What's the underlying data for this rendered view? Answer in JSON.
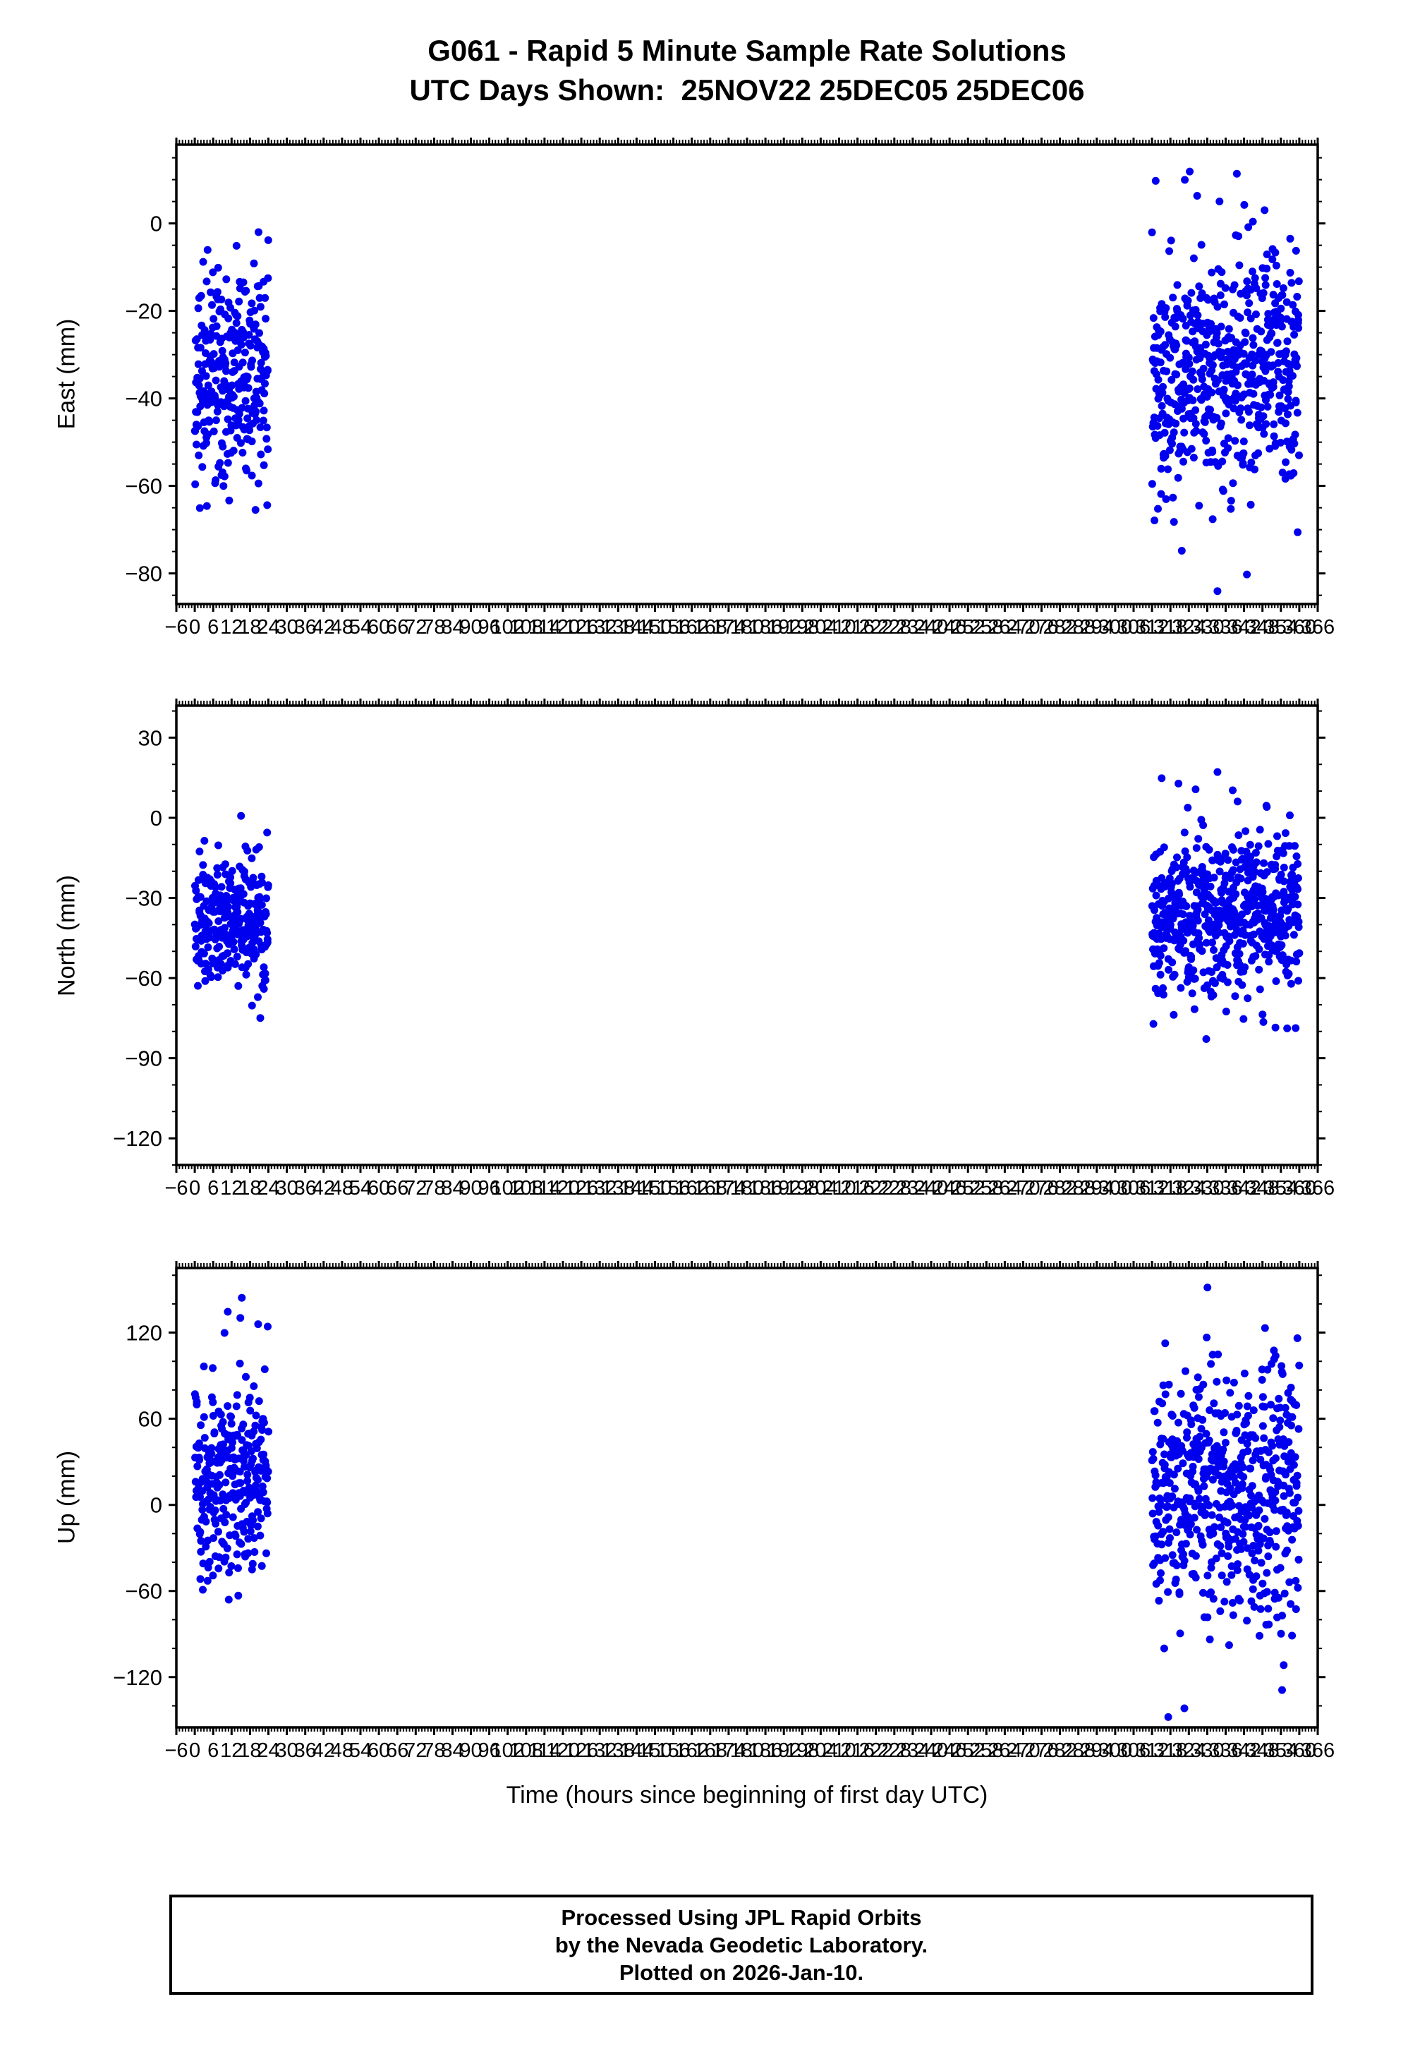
{
  "title": {
    "line1": "G061 - Rapid 5 Minute Sample Rate Solutions",
    "line2": "UTC Days Shown:  25NOV22 25DEC05 25DEC06"
  },
  "xaxis_title": "Time (hours since beginning of first day UTC)",
  "footer": {
    "line1": "Processed Using JPL Rapid Orbits",
    "line2": "by the Nevada Geodetic Laboratory.",
    "line3": "Plotted on 2026-Jan-10."
  },
  "colors": {
    "point": "#0000ee",
    "frame": "#000000"
  },
  "chart_data": [
    {
      "type": "scatter",
      "ylabel": "East (mm)",
      "xlabel": "Time (hours since beginning of first day UTC)",
      "xlim": [
        -6,
        366
      ],
      "ylim": [
        -87,
        18
      ],
      "yticks": [
        0,
        -20,
        -40,
        -60,
        -80
      ],
      "ytick_minor_step": 5,
      "xtick_step": 6,
      "xtick_minor_step": 1,
      "legend": "none",
      "grid": false,
      "clusters": [
        {
          "x_start": 0,
          "x_end": 24,
          "count": 288,
          "mean": -35,
          "std": 13,
          "clip_min": -66,
          "clip_max": 0,
          "seed": 11,
          "outlier_frac": 0.0,
          "outlier_scale": 1.0
        },
        {
          "x_start": 312,
          "x_end": 360,
          "count": 576,
          "mean": -34,
          "std": 13,
          "clip_min": -86,
          "clip_max": 15,
          "seed": 12,
          "outlier_frac": 0.08,
          "outlier_scale": 2.0
        }
      ]
    },
    {
      "type": "scatter",
      "ylabel": "North (mm)",
      "xlabel": "Time (hours since beginning of first day UTC)",
      "xlim": [
        -6,
        366
      ],
      "ylim": [
        -130,
        42
      ],
      "yticks": [
        30,
        0,
        -30,
        -60,
        -90,
        -120
      ],
      "ytick_minor_step": 10,
      "xtick_step": 6,
      "xtick_minor_step": 1,
      "legend": "none",
      "grid": false,
      "clusters": [
        {
          "x_start": 0,
          "x_end": 24,
          "count": 288,
          "mean": -37,
          "std": 13,
          "clip_min": -80,
          "clip_max": 17,
          "seed": 21,
          "outlier_frac": 0.0,
          "outlier_scale": 1.0
        },
        {
          "x_start": 312,
          "x_end": 360,
          "count": 576,
          "mean": -36,
          "std": 15,
          "clip_min": -127,
          "clip_max": 37,
          "seed": 22,
          "outlier_frac": 0.07,
          "outlier_scale": 2.0
        }
      ]
    },
    {
      "type": "scatter",
      "ylabel": "Up (mm)",
      "xlabel": "Time (hours since beginning of first day UTC)",
      "xlim": [
        -6,
        366
      ],
      "ylim": [
        -155,
        165
      ],
      "yticks": [
        120,
        60,
        0,
        -60,
        -120
      ],
      "ytick_minor_step": 20,
      "xtick_step": 6,
      "xtick_minor_step": 1,
      "legend": "none",
      "grid": false,
      "clusters": [
        {
          "x_start": 0,
          "x_end": 24,
          "count": 288,
          "mean": 20,
          "std": 36,
          "clip_min": -125,
          "clip_max": 145,
          "seed": 31,
          "outlier_frac": 0.04,
          "outlier_scale": 2.0
        },
        {
          "x_start": 312,
          "x_end": 360,
          "count": 576,
          "mean": 10,
          "std": 42,
          "clip_min": -148,
          "clip_max": 152,
          "seed": 32,
          "outlier_frac": 0.05,
          "outlier_scale": 2.0
        }
      ]
    }
  ]
}
